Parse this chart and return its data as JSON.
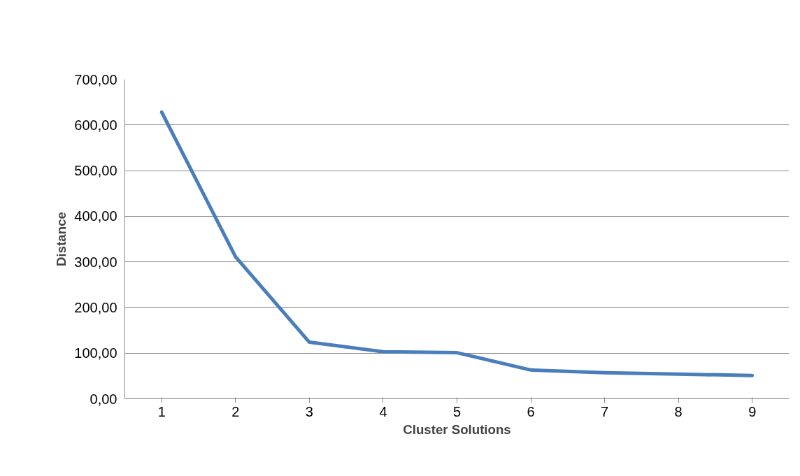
{
  "chart_data": {
    "type": "line",
    "xlabel": "Cluster Solutions",
    "ylabel": "Distance",
    "categories": [
      "1",
      "2",
      "3",
      "4",
      "5",
      "6",
      "7",
      "8",
      "9"
    ],
    "series": [
      {
        "color": "#4a7ebb",
        "values": [
          628,
          311,
          124,
          103,
          101,
          63,
          57,
          54,
          51
        ]
      }
    ],
    "ylim": [
      0,
      700
    ],
    "yticks": [
      {
        "value": 0,
        "label": "0,00"
      },
      {
        "value": 100,
        "label": "100,00"
      },
      {
        "value": 200,
        "label": "200,00"
      },
      {
        "value": 300,
        "label": "300,00"
      },
      {
        "value": 400,
        "label": "400,00"
      },
      {
        "value": 500,
        "label": "500,00"
      },
      {
        "value": 600,
        "label": "600,00"
      },
      {
        "value": 700,
        "label": "700,00"
      }
    ],
    "grid": "y",
    "marker": "none",
    "line_style": "solid"
  }
}
